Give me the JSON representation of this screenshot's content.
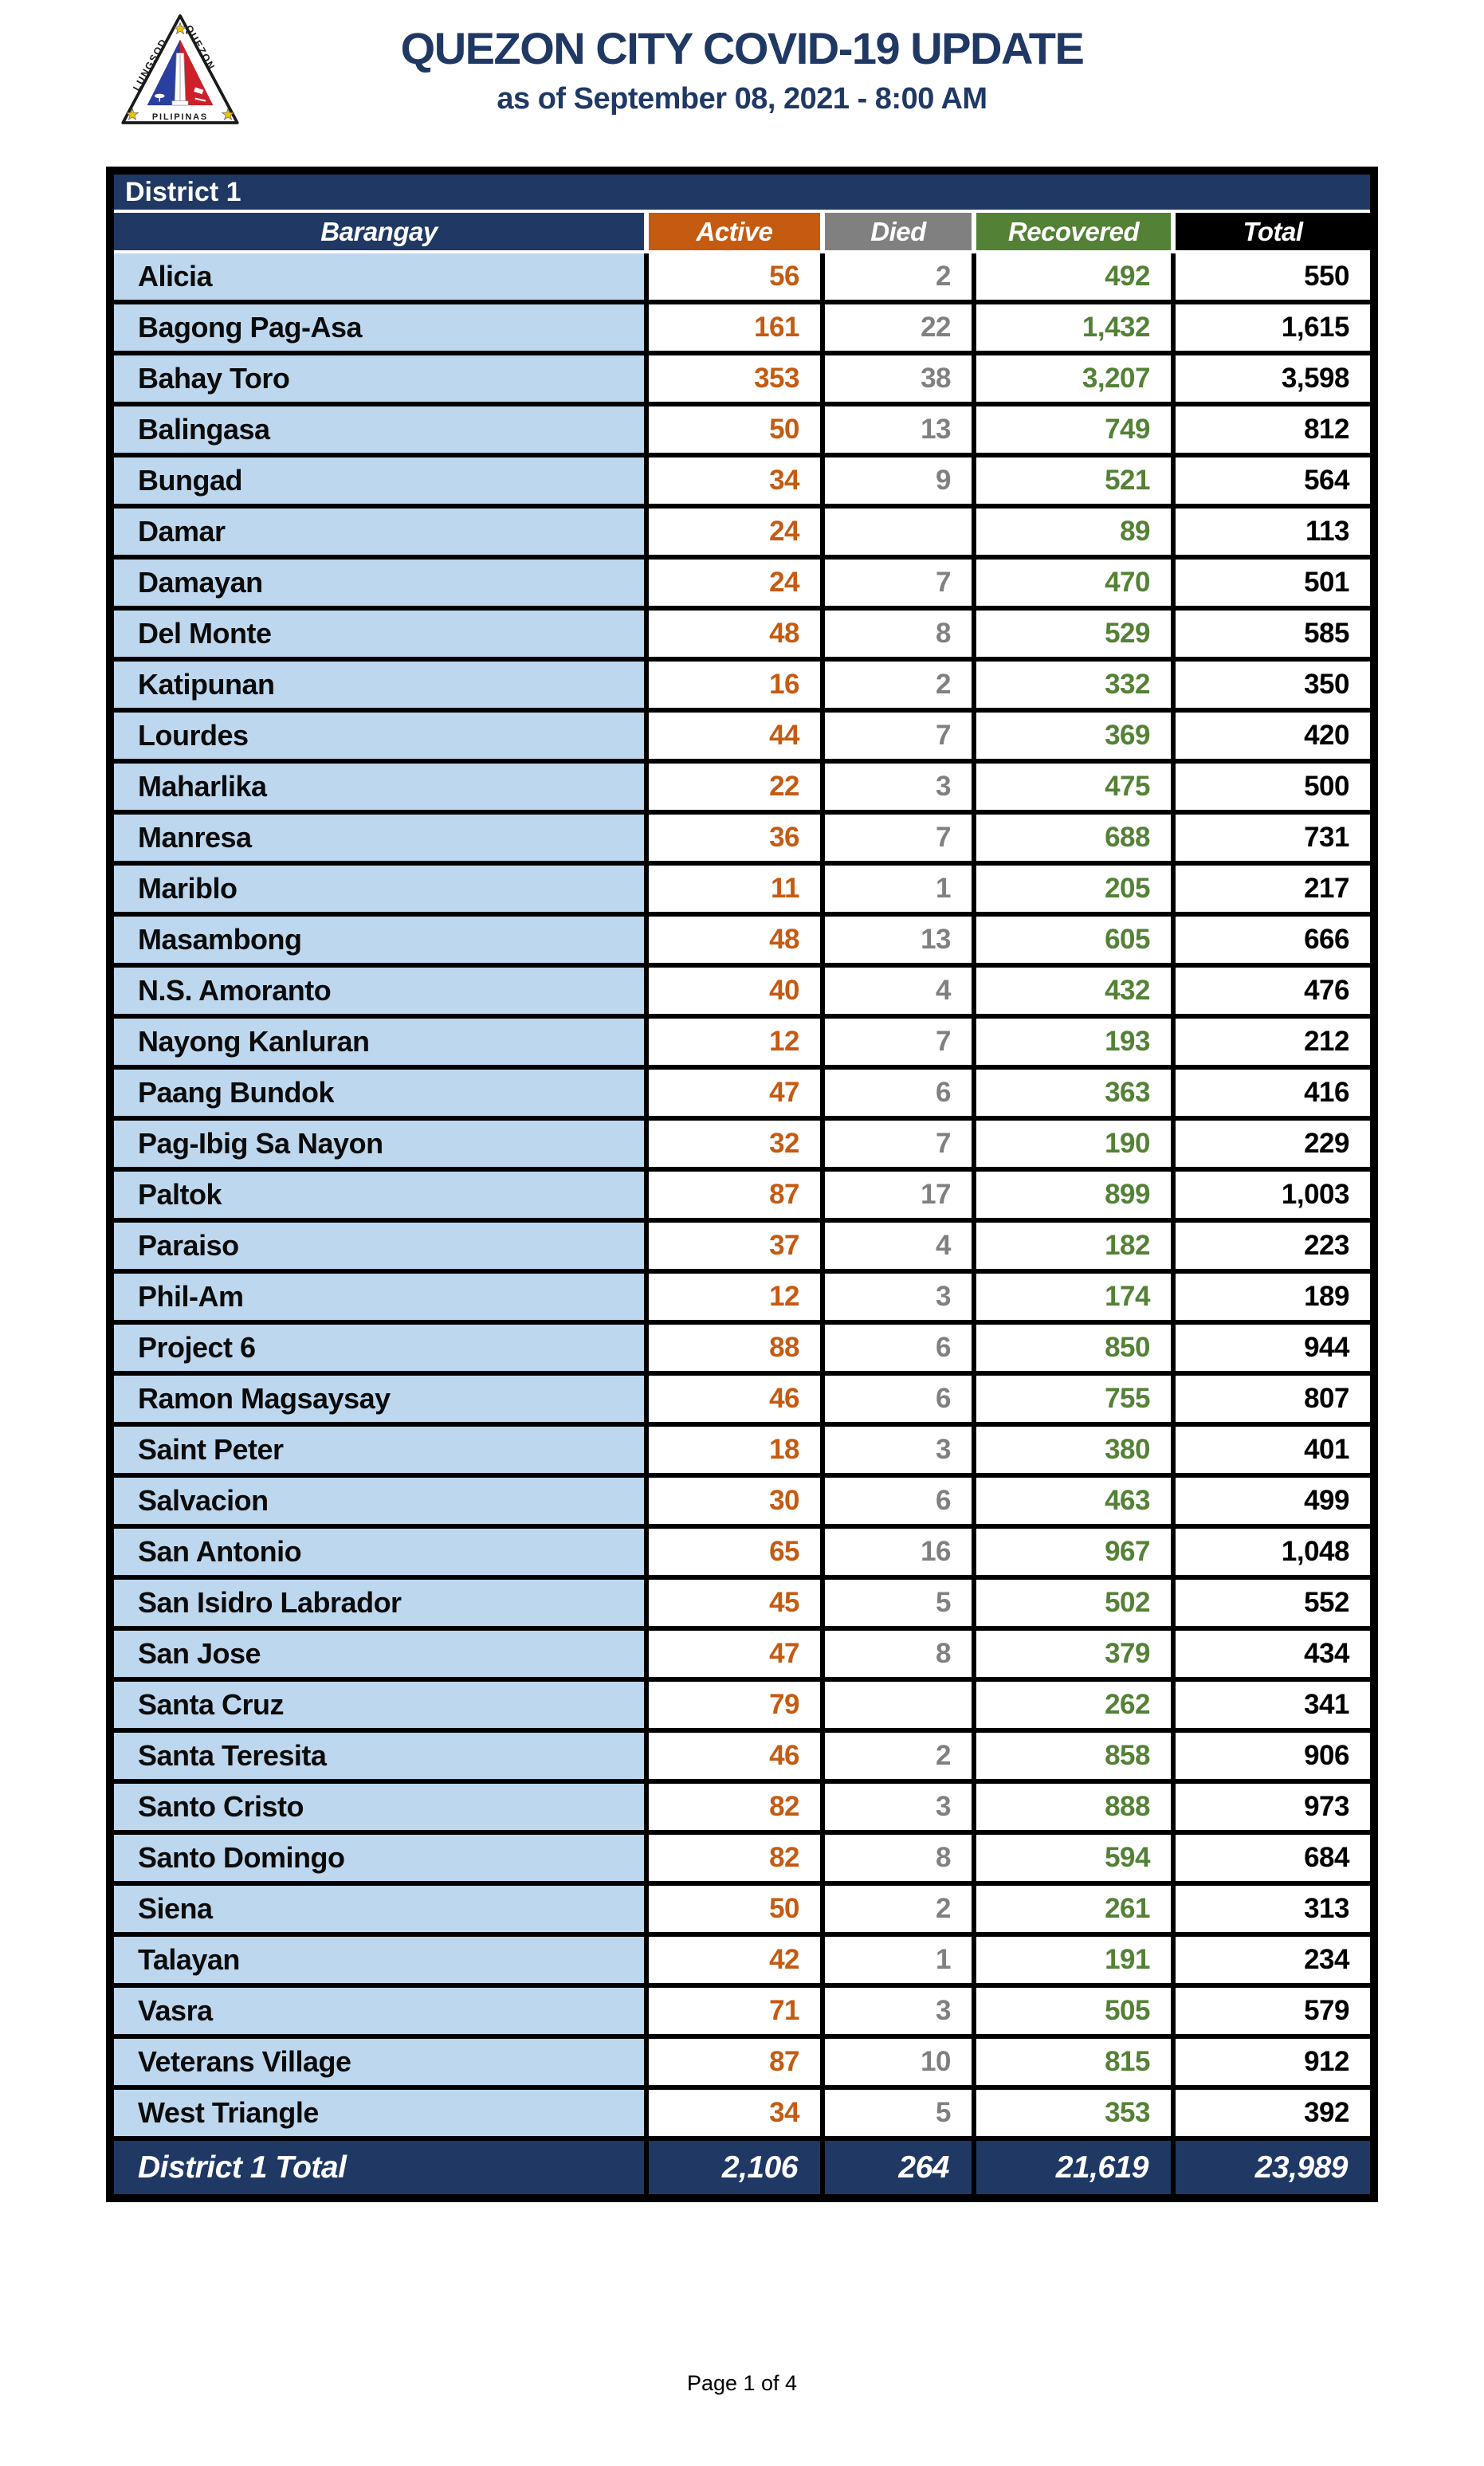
{
  "header": {
    "title": "QUEZON CITY COVID-19 UPDATE",
    "subtitle": "as of September 08, 2021 - 8:00 AM",
    "logo": {
      "icon": "quezon-city-seal",
      "text_left": "LUNGSOD",
      "text_right": "QUEZON",
      "text_bottom": "PILIPINAS"
    }
  },
  "table": {
    "district_label": "District 1",
    "columns": [
      "Barangay",
      "Active",
      "Died",
      "Recovered",
      "Total"
    ],
    "rows": [
      [
        "Alicia",
        "56",
        "2",
        "492",
        "550"
      ],
      [
        "Bagong Pag-Asa",
        "161",
        "22",
        "1,432",
        "1,615"
      ],
      [
        "Bahay Toro",
        "353",
        "38",
        "3,207",
        "3,598"
      ],
      [
        "Balingasa",
        "50",
        "13",
        "749",
        "812"
      ],
      [
        "Bungad",
        "34",
        "9",
        "521",
        "564"
      ],
      [
        "Damar",
        "24",
        "",
        "89",
        "113"
      ],
      [
        "Damayan",
        "24",
        "7",
        "470",
        "501"
      ],
      [
        "Del Monte",
        "48",
        "8",
        "529",
        "585"
      ],
      [
        "Katipunan",
        "16",
        "2",
        "332",
        "350"
      ],
      [
        "Lourdes",
        "44",
        "7",
        "369",
        "420"
      ],
      [
        "Maharlika",
        "22",
        "3",
        "475",
        "500"
      ],
      [
        "Manresa",
        "36",
        "7",
        "688",
        "731"
      ],
      [
        "Mariblo",
        "11",
        "1",
        "205",
        "217"
      ],
      [
        "Masambong",
        "48",
        "13",
        "605",
        "666"
      ],
      [
        "N.S. Amoranto",
        "40",
        "4",
        "432",
        "476"
      ],
      [
        "Nayong Kanluran",
        "12",
        "7",
        "193",
        "212"
      ],
      [
        "Paang Bundok",
        "47",
        "6",
        "363",
        "416"
      ],
      [
        "Pag-Ibig Sa Nayon",
        "32",
        "7",
        "190",
        "229"
      ],
      [
        "Paltok",
        "87",
        "17",
        "899",
        "1,003"
      ],
      [
        "Paraiso",
        "37",
        "4",
        "182",
        "223"
      ],
      [
        "Phil-Am",
        "12",
        "3",
        "174",
        "189"
      ],
      [
        "Project 6",
        "88",
        "6",
        "850",
        "944"
      ],
      [
        "Ramon Magsaysay",
        "46",
        "6",
        "755",
        "807"
      ],
      [
        "Saint Peter",
        "18",
        "3",
        "380",
        "401"
      ],
      [
        "Salvacion",
        "30",
        "6",
        "463",
        "499"
      ],
      [
        "San Antonio",
        "65",
        "16",
        "967",
        "1,048"
      ],
      [
        "San Isidro Labrador",
        "45",
        "5",
        "502",
        "552"
      ],
      [
        "San Jose",
        "47",
        "8",
        "379",
        "434"
      ],
      [
        "Santa Cruz",
        "79",
        "",
        "262",
        "341"
      ],
      [
        "Santa Teresita",
        "46",
        "2",
        "858",
        "906"
      ],
      [
        "Santo Cristo",
        "82",
        "3",
        "888",
        "973"
      ],
      [
        "Santo Domingo",
        "82",
        "8",
        "594",
        "684"
      ],
      [
        "Siena",
        "50",
        "2",
        "261",
        "313"
      ],
      [
        "Talayan",
        "42",
        "1",
        "191",
        "234"
      ],
      [
        "Vasra",
        "71",
        "3",
        "505",
        "579"
      ],
      [
        "Veterans Village",
        "87",
        "10",
        "815",
        "912"
      ],
      [
        "West Triangle",
        "34",
        "5",
        "353",
        "392"
      ]
    ],
    "total_row": [
      "District 1 Total",
      "2,106",
      "264",
      "21,619",
      "23,989"
    ]
  },
  "footer": {
    "page_label": "Page 1 of 4"
  },
  "colors": {
    "navy": "#1F3864",
    "active_orange": "#C55A11",
    "died_gray": "#808080",
    "recovered_green": "#538135",
    "total_black": "#000000",
    "row_light_blue": "#BDD7EE",
    "seal_blue": "#2B3F9E",
    "seal_red": "#CE2029",
    "seal_star_yellow": "#F2C200"
  }
}
